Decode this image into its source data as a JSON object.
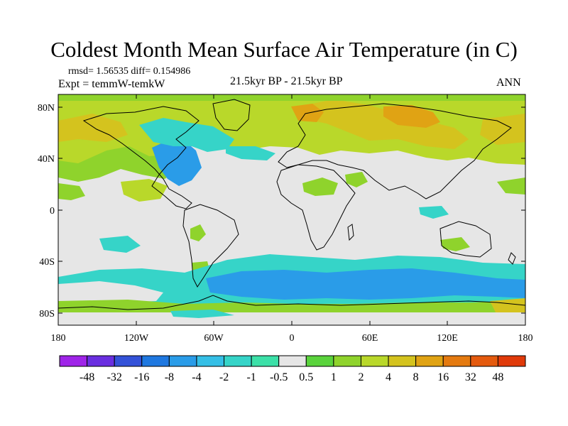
{
  "title": "Coldest Month Mean Surface Air Temperature (in C)",
  "stats": "rmsd= 1.56535 diff= 0.154986",
  "expt": "Expt = temmW-temkW",
  "period": "21.5kyr BP - 21.5kyr BP",
  "season": "ANN",
  "lat_labels": [
    "80N",
    "40N",
    "0",
    "40S",
    "80S"
  ],
  "lon_labels": [
    "180",
    "120W",
    "60W",
    "0",
    "60E",
    "120E",
    "180"
  ],
  "colorbar": {
    "labels": [
      "-48",
      "-32",
      "-16",
      "-8",
      "-4",
      "-2",
      "-1",
      "-0.5",
      "0.5",
      "1",
      "2",
      "4",
      "8",
      "16",
      "32",
      "48"
    ],
    "colors": [
      "#9f24e8",
      "#6a2fe0",
      "#3452d8",
      "#1f78e0",
      "#2a9ce8",
      "#35bfe6",
      "#36d4c8",
      "#3ce0a8",
      "#e6e6e6",
      "#5ad33c",
      "#8fd32c",
      "#b9d82a",
      "#d4c31e",
      "#e0a314",
      "#e47a10",
      "#e45a0e",
      "#e03a0a"
    ]
  },
  "colors": {
    "land_outline": "#000000",
    "neutral": "#e6e6e6",
    "cool_light": "#36d4c8",
    "cool_mid": "#2a9ce8",
    "warm_light": "#8fd32c",
    "warm_mid": "#b9d82a",
    "warm_high": "#d4c31e",
    "warm_strong": "#e0a314"
  }
}
